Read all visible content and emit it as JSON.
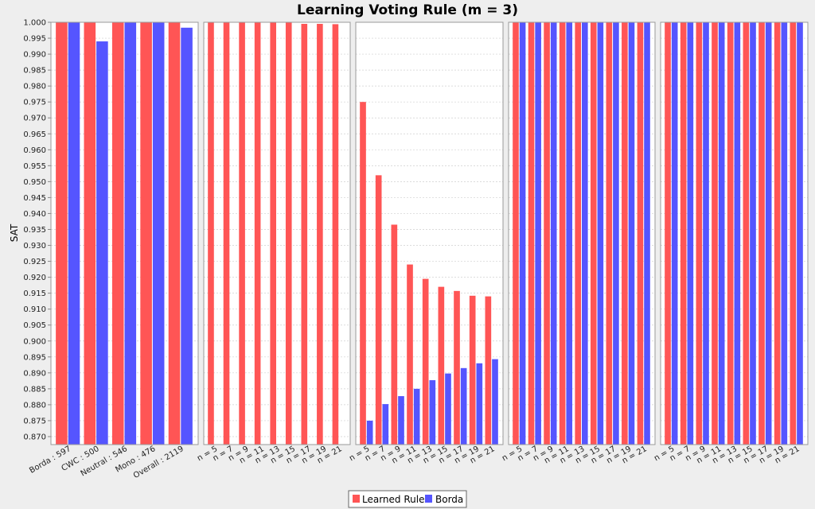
{
  "chart_data": {
    "type": "bar",
    "title": "Learning Voting Rule (m = 3)",
    "ylabel": "SAT",
    "ylim": [
      0.8675,
      1.0
    ],
    "yticks": [
      0.87,
      0.875,
      0.88,
      0.885,
      0.89,
      0.895,
      0.9,
      0.905,
      0.91,
      0.915,
      0.92,
      0.925,
      0.93,
      0.935,
      0.94,
      0.945,
      0.95,
      0.955,
      0.96,
      0.965,
      0.97,
      0.975,
      0.98,
      0.985,
      0.99,
      0.995,
      1.0
    ],
    "grid": true,
    "legend_position": "bottom",
    "series_names": [
      "Learned Rule",
      "Borda"
    ],
    "colors": [
      "#ff5555",
      "#5555ff"
    ],
    "panels": [
      {
        "categories": [
          "Borda : 597",
          "CWC : 500",
          "Neutral : 546",
          "Mono : 476",
          "Overall : 2119"
        ],
        "series": [
          {
            "name": "Learned Rule",
            "values": [
              1.0,
              1.0,
              1.0,
              1.0,
              1.0
            ]
          },
          {
            "name": "Borda",
            "values": [
              1.0,
              0.994,
              1.0,
              1.0,
              0.9983
            ]
          }
        ]
      },
      {
        "categories": [
          "n = 5",
          "n = 7",
          "n = 9",
          "n = 11",
          "n = 13",
          "n = 15",
          "n = 17",
          "n = 19",
          "n = 21"
        ],
        "series": [
          {
            "name": "Learned Rule",
            "values": [
              1.0,
              1.0,
              1.0,
              1.0,
              1.0,
              1.0,
              0.9995,
              0.9995,
              0.9994
            ]
          },
          {
            "name": "Borda",
            "values": [
              null,
              null,
              null,
              null,
              null,
              null,
              null,
              null,
              null
            ]
          }
        ]
      },
      {
        "categories": [
          "n = 5",
          "n = 7",
          "n = 9",
          "n = 11",
          "n = 13",
          "n = 15",
          "n = 17",
          "n = 19",
          "n = 21"
        ],
        "series": [
          {
            "name": "Learned Rule",
            "values": [
              0.975,
              0.952,
              0.9365,
              0.924,
              0.9195,
              0.917,
              0.9157,
              0.9142,
              0.914
            ]
          },
          {
            "name": "Borda",
            "values": [
              0.875,
              0.8802,
              0.8827,
              0.885,
              0.8877,
              0.8898,
              0.8915,
              0.893,
              0.8943
            ]
          }
        ]
      },
      {
        "categories": [
          "n = 5",
          "n = 7",
          "n = 9",
          "n = 11",
          "n = 13",
          "n = 15",
          "n = 17",
          "n = 19",
          "n = 21"
        ],
        "series": [
          {
            "name": "Learned Rule",
            "values": [
              1.0,
              1.0,
              1.0,
              1.0,
              1.0,
              1.0,
              1.0,
              1.0,
              1.0
            ]
          },
          {
            "name": "Borda",
            "values": [
              1.0,
              1.0,
              1.0,
              1.0,
              1.0,
              1.0,
              1.0,
              1.0,
              1.0
            ]
          }
        ]
      },
      {
        "categories": [
          "n = 5",
          "n = 7",
          "n = 9",
          "n = 11",
          "n = 13",
          "n = 15",
          "n = 17",
          "n = 19",
          "n = 21"
        ],
        "series": [
          {
            "name": "Learned Rule",
            "values": [
              1.0,
              1.0,
              1.0,
              1.0,
              1.0,
              1.0,
              1.0,
              1.0,
              1.0
            ]
          },
          {
            "name": "Borda",
            "values": [
              1.0,
              1.0,
              1.0,
              1.0,
              1.0,
              1.0,
              1.0,
              1.0,
              1.0
            ]
          }
        ]
      }
    ]
  }
}
